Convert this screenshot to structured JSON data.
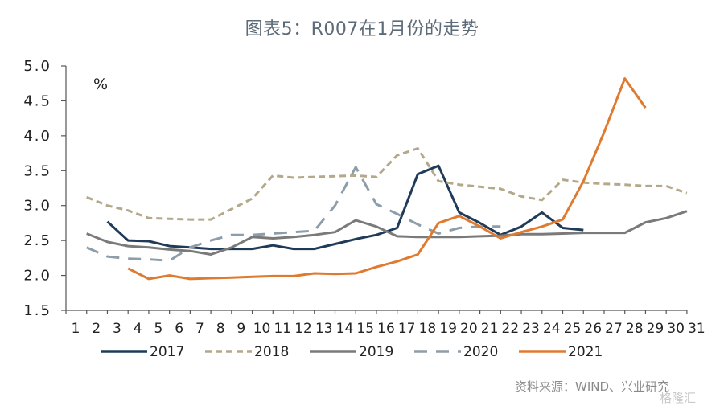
{
  "chart_data": {
    "type": "line",
    "title": "图表5：R007在1月份的走势",
    "ylabel": "%",
    "xlabel": "",
    "ylim": [
      1.5,
      5.0
    ],
    "yticks": [
      "5.0",
      "4.5",
      "4.0",
      "3.5",
      "3.0",
      "2.5",
      "2.0",
      "1.5"
    ],
    "ytick_values": [
      5.0,
      4.5,
      4.0,
      3.5,
      3.0,
      2.5,
      2.0,
      1.5
    ],
    "x": [
      1,
      2,
      3,
      4,
      5,
      6,
      7,
      8,
      9,
      10,
      11,
      12,
      13,
      14,
      15,
      16,
      17,
      18,
      19,
      20,
      21,
      22,
      23,
      24,
      25,
      26,
      27,
      28,
      29,
      30,
      31
    ],
    "xtick_labels": [
      "1",
      "2",
      "3",
      "4",
      "5",
      "6",
      "7",
      "8",
      "9",
      "10",
      "11",
      "12",
      "13",
      "14",
      "15",
      "16",
      "17",
      "18",
      "19",
      "20",
      "21",
      "22",
      "23",
      "24",
      "25",
      "26",
      "27",
      "28",
      "29",
      "30",
      "31"
    ],
    "grid": false,
    "legend_position": "bottom",
    "series": [
      {
        "name": "2017",
        "color": "#1f3b57",
        "dash": "solid",
        "values": [
          null,
          null,
          2.77,
          2.5,
          2.49,
          2.42,
          2.4,
          2.38,
          2.38,
          2.38,
          2.43,
          2.38,
          2.38,
          2.45,
          2.52,
          2.58,
          2.68,
          3.45,
          3.57,
          2.9,
          2.75,
          2.58,
          2.7,
          2.9,
          2.68,
          2.65,
          null,
          null,
          null,
          null,
          null
        ]
      },
      {
        "name": "2018",
        "color": "#b3a98a",
        "dash": "short",
        "values": [
          null,
          3.12,
          3.0,
          2.93,
          2.82,
          2.81,
          2.8,
          2.8,
          2.95,
          3.1,
          3.43,
          3.4,
          3.41,
          3.42,
          3.43,
          3.41,
          3.72,
          3.82,
          3.35,
          3.3,
          3.27,
          3.24,
          3.13,
          3.08,
          3.37,
          3.33,
          3.31,
          3.3,
          3.28,
          3.28,
          3.18
        ]
      },
      {
        "name": "2019",
        "color": "#7a7a7a",
        "dash": "solid",
        "values": [
          null,
          2.6,
          2.48,
          2.42,
          2.4,
          2.37,
          2.35,
          2.3,
          2.4,
          2.55,
          2.53,
          2.55,
          2.58,
          2.62,
          2.79,
          2.7,
          2.56,
          2.55,
          2.55,
          2.55,
          2.56,
          2.57,
          2.59,
          2.59,
          2.6,
          2.61,
          2.61,
          2.61,
          2.76,
          2.82,
          2.92
        ]
      },
      {
        "name": "2020",
        "color": "#8e9daa",
        "dash": "long",
        "values": [
          null,
          2.4,
          2.27,
          2.24,
          2.23,
          2.21,
          2.4,
          2.5,
          2.58,
          2.58,
          2.6,
          2.62,
          2.64,
          3.0,
          3.55,
          3.02,
          2.88,
          2.73,
          2.6,
          2.68,
          2.7,
          2.7,
          null,
          null,
          null,
          null,
          null,
          null,
          null,
          null,
          null
        ]
      },
      {
        "name": "2021",
        "color": "#e07a2e",
        "dash": "solid",
        "values": [
          null,
          null,
          null,
          2.1,
          1.95,
          2.0,
          1.95,
          1.96,
          1.97,
          1.98,
          1.99,
          1.99,
          2.03,
          2.02,
          2.03,
          2.12,
          2.2,
          2.3,
          2.75,
          2.85,
          2.7,
          2.53,
          2.62,
          2.7,
          2.8,
          3.35,
          4.05,
          4.82,
          4.4,
          null,
          null
        ]
      }
    ]
  },
  "source_note": "资料来源：WIND、兴业研究",
  "watermark": "格隆汇"
}
